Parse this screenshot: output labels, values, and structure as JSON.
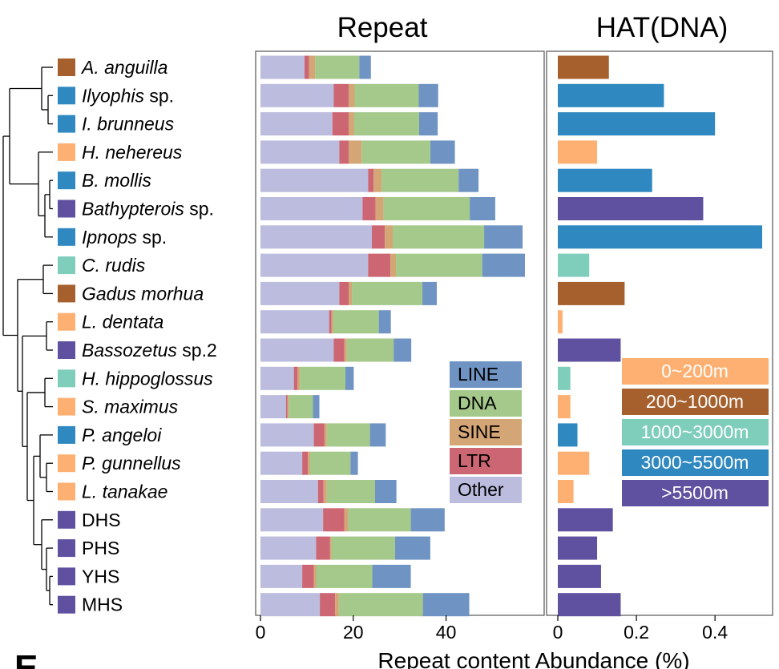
{
  "chart_data": [
    {
      "type": "bar",
      "stacked": true,
      "orientation": "horizontal",
      "title": "Repeat",
      "xlabel": "Repeat content Abundance (%)",
      "xlim": [
        0,
        57
      ],
      "xticks": [
        "0",
        "20",
        "40"
      ],
      "legend_position": "right",
      "categories": [
        "A. anguilla",
        "Ilyophis sp.",
        "I. brunneus",
        "H. nehereus",
        "B. mollis",
        "Bathypterois sp.",
        "Ipnops sp.",
        "C. rudis",
        "Gadus morhua",
        "L. dentata",
        "Bassozetus sp.2",
        "H. hippoglossus",
        "S. maximus",
        "P. angeloi",
        "P. gunnellus",
        "L. tanakae",
        "DHS",
        "PHS",
        "YHS",
        "MHS"
      ],
      "series": [
        {
          "name": "Other",
          "color": "#bcbcdf",
          "values": [
            9.5,
            15.8,
            15.5,
            17,
            23.2,
            22,
            24,
            23.2,
            17,
            14.8,
            15.8,
            7.2,
            5.5,
            11.5,
            9,
            12.4,
            13.5,
            12,
            9,
            12.8
          ]
        },
        {
          "name": "LTR",
          "color": "#cd6673",
          "values": [
            1,
            3.2,
            3.5,
            2,
            1.2,
            2.8,
            2.8,
            4.8,
            2,
            0.5,
            2.3,
            0.8,
            0.3,
            2.3,
            1.2,
            1.2,
            4.6,
            3,
            2.5,
            3.3
          ]
        },
        {
          "name": "SINE",
          "color": "#d4a676",
          "values": [
            1.3,
            1.3,
            1.2,
            2.8,
            1.7,
            1.7,
            1.7,
            1.2,
            0.7,
            0.4,
            0.5,
            0.5,
            0.3,
            0.5,
            0.5,
            0.7,
            0.8,
            0.3,
            0.5,
            0.8
          ]
        },
        {
          "name": "DNA",
          "color": "#a4c98a",
          "values": [
            9.5,
            13.8,
            14,
            14.8,
            16.6,
            18.6,
            19.7,
            18.6,
            15.2,
            9.8,
            10.1,
            9.8,
            5.2,
            9.3,
            8.7,
            10.4,
            13.5,
            13.7,
            12.1,
            18.1
          ]
        },
        {
          "name": "LINE",
          "color": "#6f94c3",
          "values": [
            2.5,
            4.2,
            4,
            5.3,
            4.3,
            5.5,
            8.3,
            9.2,
            3.1,
            2.6,
            3.8,
            1.8,
            1.4,
            3.4,
            1.6,
            4.6,
            7.3,
            7.6,
            8.3,
            10
          ]
        }
      ]
    },
    {
      "type": "bar",
      "orientation": "horizontal",
      "title": "HAT(DNA)",
      "xlim": [
        0,
        0.52
      ],
      "xticks": [
        "0",
        "0.2",
        "0.4"
      ],
      "legend_position": "right",
      "categories": [
        "A. anguilla",
        "Ilyophis sp.",
        "I. brunneus",
        "H. nehereus",
        "B. mollis",
        "Bathypterois sp.",
        "Ipnops sp.",
        "C. rudis",
        "Gadus morhua",
        "L. dentata",
        "Bassozetus sp.2",
        "H. hippoglossus",
        "S. maximus",
        "P. angeloi",
        "P. gunnellus",
        "L. tanakae",
        "DHS",
        "PHS",
        "YHS",
        "MHS"
      ],
      "values": [
        0.13,
        0.27,
        0.4,
        0.1,
        0.24,
        0.37,
        0.52,
        0.08,
        0.17,
        0.012,
        0.16,
        0.032,
        0.032,
        0.05,
        0.08,
        0.04,
        0.14,
        0.1,
        0.11,
        0.16
      ],
      "depth_group": [
        "200~1000m",
        "3000~5500m",
        "3000~5500m",
        "0~200m",
        "3000~5500m",
        ">5500m",
        "3000~5500m",
        "1000~3000m",
        "200~1000m",
        "0~200m",
        ">5500m",
        "1000~3000m",
        "0~200m",
        "3000~5500m",
        "0~200m",
        "0~200m",
        ">5500m",
        ">5500m",
        ">5500m",
        ">5500m"
      ]
    }
  ],
  "depth_legend": [
    {
      "label": "0~200m",
      "color": "#fdb072"
    },
    {
      "label": "200~1000m",
      "color": "#a5602e"
    },
    {
      "label": "1000~3000m",
      "color": "#7fcdbb"
    },
    {
      "label": "3000~5500m",
      "color": "#2f88c0"
    },
    {
      "label": ">5500m",
      "color": "#5f50a0"
    }
  ],
  "species_labels": [
    {
      "italic": "A. anguilla",
      "plain": ""
    },
    {
      "italic": "Ilyophis",
      "plain": " sp."
    },
    {
      "italic": "I. brunneus",
      "plain": ""
    },
    {
      "italic": "H. nehereus",
      "plain": ""
    },
    {
      "italic": "B. mollis",
      "plain": ""
    },
    {
      "italic": "Bathypterois",
      "plain": " sp."
    },
    {
      "italic": "Ipnops",
      "plain": " sp."
    },
    {
      "italic": "C. rudis",
      "plain": ""
    },
    {
      "italic": "Gadus morhua",
      "plain": ""
    },
    {
      "italic": "L. dentata",
      "plain": ""
    },
    {
      "italic": "Bassozetus",
      "plain": " sp.2"
    },
    {
      "italic": "H. hippoglossus",
      "plain": ""
    },
    {
      "italic": "S. maximus",
      "plain": ""
    },
    {
      "italic": "P. angeloi",
      "plain": ""
    },
    {
      "italic": "P. gunnellus",
      "plain": ""
    },
    {
      "italic": "L. tanakae",
      "plain": ""
    },
    {
      "italic": "",
      "plain": "DHS"
    },
    {
      "italic": "",
      "plain": "PHS"
    },
    {
      "italic": "",
      "plain": "YHS"
    },
    {
      "italic": "",
      "plain": "MHS"
    }
  ],
  "repeat_legend_order": [
    "LINE",
    "DNA",
    "SINE",
    "LTR",
    "Other"
  ],
  "panel_letter": "E"
}
